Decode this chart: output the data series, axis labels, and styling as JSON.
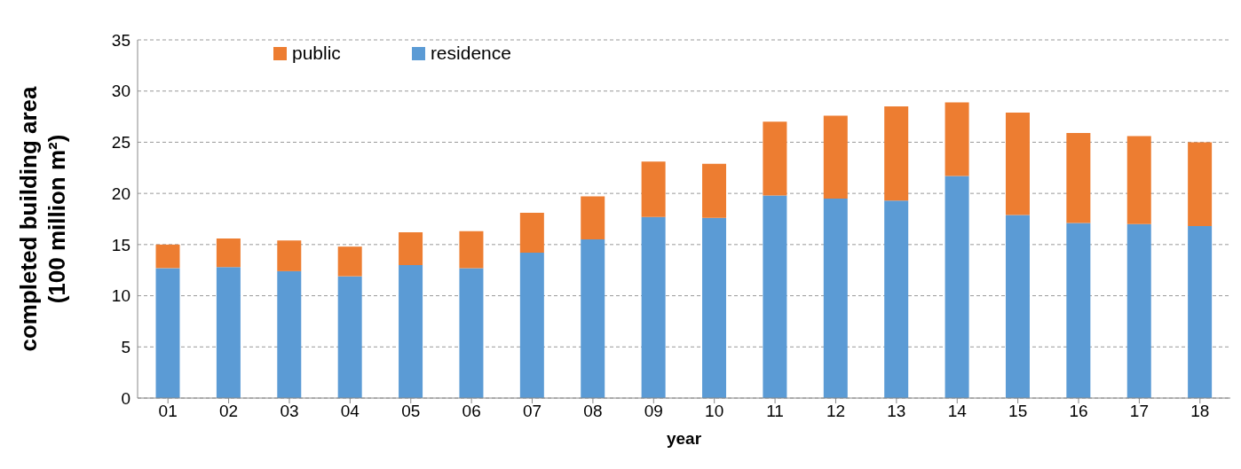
{
  "chart_data": {
    "type": "bar",
    "stacked": true,
    "xlabel": "year",
    "ylabel": "completed building area\n(100 million m²)",
    "categories": [
      "01",
      "02",
      "03",
      "04",
      "05",
      "06",
      "07",
      "08",
      "09",
      "10",
      "11",
      "12",
      "13",
      "14",
      "15",
      "16",
      "17",
      "18"
    ],
    "series": [
      {
        "name": "residence",
        "color": "#5b9bd5",
        "values": [
          12.7,
          12.8,
          12.4,
          11.9,
          13.0,
          12.7,
          14.2,
          15.5,
          17.7,
          17.6,
          19.8,
          19.5,
          19.3,
          21.7,
          17.9,
          17.1,
          17.0,
          16.8
        ]
      },
      {
        "name": "public",
        "color": "#ed7d31",
        "values": [
          2.3,
          2.8,
          3.0,
          2.9,
          3.2,
          3.6,
          3.9,
          4.2,
          5.4,
          5.3,
          7.2,
          8.1,
          9.2,
          7.2,
          10.0,
          8.8,
          8.6,
          8.2
        ]
      }
    ],
    "ylim": [
      0,
      35
    ],
    "yticks": [
      0,
      5,
      10,
      15,
      20,
      25,
      30,
      35
    ],
    "grid": "y",
    "legend": "top left"
  }
}
